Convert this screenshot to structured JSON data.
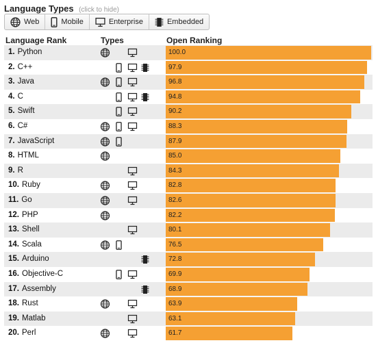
{
  "header": {
    "title": "Language Types",
    "hint": "(click to hide)"
  },
  "filters": [
    {
      "label": "Web",
      "icon": "globe-icon"
    },
    {
      "label": "Mobile",
      "icon": "mobile-icon"
    },
    {
      "label": "Enterprise",
      "icon": "desktop-icon"
    },
    {
      "label": "Embedded",
      "icon": "chip-icon"
    }
  ],
  "columns": {
    "rank": "Language Rank",
    "types": "Types",
    "ranking": "Open Ranking"
  },
  "colors": {
    "bar": "#f5a033",
    "shade": "#ebebeb"
  },
  "chart_data": {
    "type": "bar",
    "categories": [
      "Python",
      "C++",
      "Java",
      "C",
      "Swift",
      "C#",
      "JavaScript",
      "HTML",
      "R",
      "Ruby",
      "Go",
      "PHP",
      "Shell",
      "Scala",
      "Arduino",
      "Objective-C",
      "Assembly",
      "Rust",
      "Matlab",
      "Perl"
    ],
    "values": [
      100.0,
      97.9,
      96.8,
      94.8,
      90.2,
      88.3,
      87.9,
      85.0,
      84.3,
      82.8,
      82.6,
      82.2,
      80.1,
      76.5,
      72.8,
      69.9,
      68.9,
      63.9,
      63.1,
      61.7
    ],
    "xlabel": "",
    "ylabel": "Open Ranking",
    "ylim": [
      0,
      100
    ]
  },
  "rows": [
    {
      "rank": "1.",
      "name": "Python",
      "value": "100.0",
      "types": [
        "web",
        "enterprise"
      ]
    },
    {
      "rank": "2.",
      "name": "C++",
      "value": "97.9",
      "types": [
        "mobile",
        "enterprise",
        "embedded"
      ]
    },
    {
      "rank": "3.",
      "name": "Java",
      "value": "96.8",
      "types": [
        "web",
        "mobile",
        "enterprise"
      ]
    },
    {
      "rank": "4.",
      "name": "C",
      "value": "94.8",
      "types": [
        "mobile",
        "enterprise",
        "embedded"
      ]
    },
    {
      "rank": "5.",
      "name": "Swift",
      "value": "90.2",
      "types": [
        "mobile",
        "enterprise"
      ]
    },
    {
      "rank": "6.",
      "name": "C#",
      "value": "88.3",
      "types": [
        "web",
        "mobile",
        "enterprise"
      ]
    },
    {
      "rank": "7.",
      "name": "JavaScript",
      "value": "87.9",
      "types": [
        "web",
        "mobile"
      ]
    },
    {
      "rank": "8.",
      "name": "HTML",
      "value": "85.0",
      "types": [
        "web"
      ]
    },
    {
      "rank": "9.",
      "name": "R",
      "value": "84.3",
      "types": [
        "enterprise"
      ]
    },
    {
      "rank": "10.",
      "name": "Ruby",
      "value": "82.8",
      "types": [
        "web",
        "enterprise"
      ]
    },
    {
      "rank": "11.",
      "name": "Go",
      "value": "82.6",
      "types": [
        "web",
        "enterprise"
      ]
    },
    {
      "rank": "12.",
      "name": "PHP",
      "value": "82.2",
      "types": [
        "web"
      ]
    },
    {
      "rank": "13.",
      "name": "Shell",
      "value": "80.1",
      "types": [
        "enterprise"
      ]
    },
    {
      "rank": "14.",
      "name": "Scala",
      "value": "76.5",
      "types": [
        "web",
        "mobile"
      ]
    },
    {
      "rank": "15.",
      "name": "Arduino",
      "value": "72.8",
      "types": [
        "embedded"
      ]
    },
    {
      "rank": "16.",
      "name": "Objective-C",
      "value": "69.9",
      "types": [
        "mobile",
        "enterprise"
      ]
    },
    {
      "rank": "17.",
      "name": "Assembly",
      "value": "68.9",
      "types": [
        "embedded"
      ]
    },
    {
      "rank": "18.",
      "name": "Rust",
      "value": "63.9",
      "types": [
        "web",
        "enterprise"
      ]
    },
    {
      "rank": "19.",
      "name": "Matlab",
      "value": "63.1",
      "types": [
        "enterprise"
      ]
    },
    {
      "rank": "20.",
      "name": "Perl",
      "value": "61.7",
      "types": [
        "web",
        "enterprise"
      ]
    }
  ]
}
